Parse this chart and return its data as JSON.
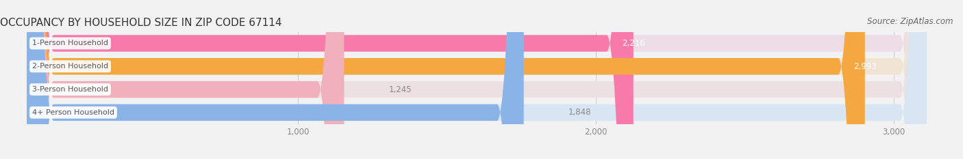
{
  "title": "OCCUPANCY BY HOUSEHOLD SIZE IN ZIP CODE 67114",
  "source": "Source: ZipAtlas.com",
  "categories": [
    "1-Person Household",
    "2-Person Household",
    "3-Person Household",
    "4+ Person Household"
  ],
  "values": [
    2216,
    2993,
    1245,
    1848
  ],
  "bar_colors": [
    "#f87aaa",
    "#f5a840",
    "#f0b0bc",
    "#8ab4e8"
  ],
  "bar_bg_colors": [
    "#ecdde6",
    "#f0e4d4",
    "#ede0e2",
    "#d8e5f2"
  ],
  "value_label_inside": [
    true,
    true,
    false,
    false
  ],
  "xlim": [
    0,
    3200
  ],
  "xticks": [
    1000,
    2000,
    3000
  ],
  "title_fontsize": 11,
  "source_fontsize": 8.5,
  "bar_height": 0.72,
  "background_color": "#f2f2f2"
}
